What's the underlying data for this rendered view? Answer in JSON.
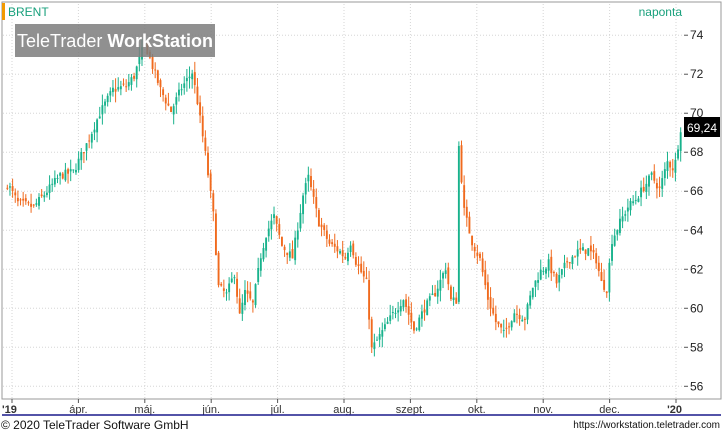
{
  "header": {
    "instrument": "BRENT",
    "interval": "naponta",
    "watermark_light": "TeleTrader ",
    "watermark_bold": "WorkStation"
  },
  "footer": {
    "copyright": "© 2020  TeleTrader Software GmbH",
    "url": "https://workstation.teletrader.com"
  },
  "colors": {
    "up": "#18b28c",
    "down": "#f06a1e",
    "grid": "#d6d6d6",
    "last_price_bg": "#000000",
    "accent_orange": "#f29a00",
    "axis_border": "#1a1a8c"
  },
  "chart_data": {
    "type": "candlestick",
    "title": "BRENT",
    "interval": "naponta",
    "last_price_label": "69,24",
    "last_price": 69.24,
    "ylim": [
      55.4,
      75.6
    ],
    "y_ticks": [
      56,
      58,
      60,
      62,
      64,
      66,
      68,
      70,
      72,
      74
    ],
    "x_tick_labels": [
      "'19",
      "ápr.",
      "máj.",
      "jún.",
      "júl.",
      "aug.",
      "szept.",
      "okt.",
      "nov.",
      "dec.",
      "'20"
    ],
    "grid": true,
    "close_path": [
      [
        0,
        66.4
      ],
      [
        4,
        65.4
      ],
      [
        10,
        65.2
      ],
      [
        15,
        66.0
      ],
      [
        20,
        66.8
      ],
      [
        25,
        67.0
      ],
      [
        30,
        68.4
      ],
      [
        35,
        70.0
      ],
      [
        40,
        71.2
      ],
      [
        45,
        71.4
      ],
      [
        48,
        71.9
      ],
      [
        52,
        73.6
      ],
      [
        55,
        72.4
      ],
      [
        58,
        71.2
      ],
      [
        62,
        70.1
      ],
      [
        66,
        71.3
      ],
      [
        70,
        72.1
      ],
      [
        72,
        70.6
      ],
      [
        75,
        67.9
      ],
      [
        78,
        64.8
      ],
      [
        80,
        61.1
      ],
      [
        83,
        60.7
      ],
      [
        86,
        61.8
      ],
      [
        88,
        59.6
      ],
      [
        90,
        60.8
      ],
      [
        93,
        60.2
      ],
      [
        96,
        62.7
      ],
      [
        98,
        63.8
      ],
      [
        101,
        64.7
      ],
      [
        104,
        63.2
      ],
      [
        108,
        62.6
      ],
      [
        112,
        65.8
      ],
      [
        114,
        66.7
      ],
      [
        118,
        64.4
      ],
      [
        122,
        63.3
      ],
      [
        126,
        62.9
      ],
      [
        128,
        62.6
      ],
      [
        130,
        63.4
      ],
      [
        132,
        62.4
      ],
      [
        136,
        61.3
      ],
      [
        138,
        57.9
      ],
      [
        142,
        58.8
      ],
      [
        146,
        59.7
      ],
      [
        150,
        60.5
      ],
      [
        154,
        58.9
      ],
      [
        158,
        60.0
      ],
      [
        162,
        60.8
      ],
      [
        164,
        61.4
      ],
      [
        166,
        62.1
      ],
      [
        168,
        60.4
      ],
      [
        170,
        60.4
      ],
      [
        171,
        68.3
      ],
      [
        173,
        65.0
      ],
      [
        176,
        63.4
      ],
      [
        179,
        62.5
      ],
      [
        182,
        60.5
      ],
      [
        185,
        59.3
      ],
      [
        188,
        58.7
      ],
      [
        192,
        59.8
      ],
      [
        196,
        59.5
      ],
      [
        199,
        61.1
      ],
      [
        202,
        61.9
      ],
      [
        205,
        62.3
      ],
      [
        208,
        61.3
      ],
      [
        212,
        62.4
      ],
      [
        216,
        62.9
      ],
      [
        220,
        63.0
      ],
      [
        223,
        62.5
      ],
      [
        225,
        61.3
      ],
      [
        227,
        61.0
      ],
      [
        229,
        63.5
      ],
      [
        232,
        64.4
      ],
      [
        235,
        65.2
      ],
      [
        238,
        65.6
      ],
      [
        241,
        66.2
      ],
      [
        244,
        66.8
      ],
      [
        247,
        66.1
      ],
      [
        250,
        67.5
      ],
      [
        252,
        67.2
      ],
      [
        253,
        67.5
      ],
      [
        255,
        69.24
      ]
    ]
  }
}
